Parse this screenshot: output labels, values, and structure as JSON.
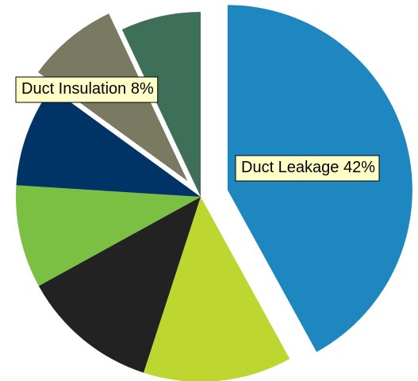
{
  "chart_data": {
    "type": "pie",
    "categories": [
      "Duct Leakage",
      null,
      null,
      null,
      null,
      "Duct Insulation",
      null
    ],
    "values": [
      42,
      13,
      12,
      9,
      9,
      8,
      7
    ],
    "value_labels": [
      "42%",
      null,
      null,
      null,
      null,
      "8%",
      null
    ],
    "colors": [
      "#1f87bf",
      "#bdd630",
      "#222222",
      "#7bc043",
      "#003366",
      "#7a7962",
      "#3e6f58"
    ],
    "exploded": [
      true,
      false,
      false,
      false,
      false,
      true,
      false
    ]
  }
}
